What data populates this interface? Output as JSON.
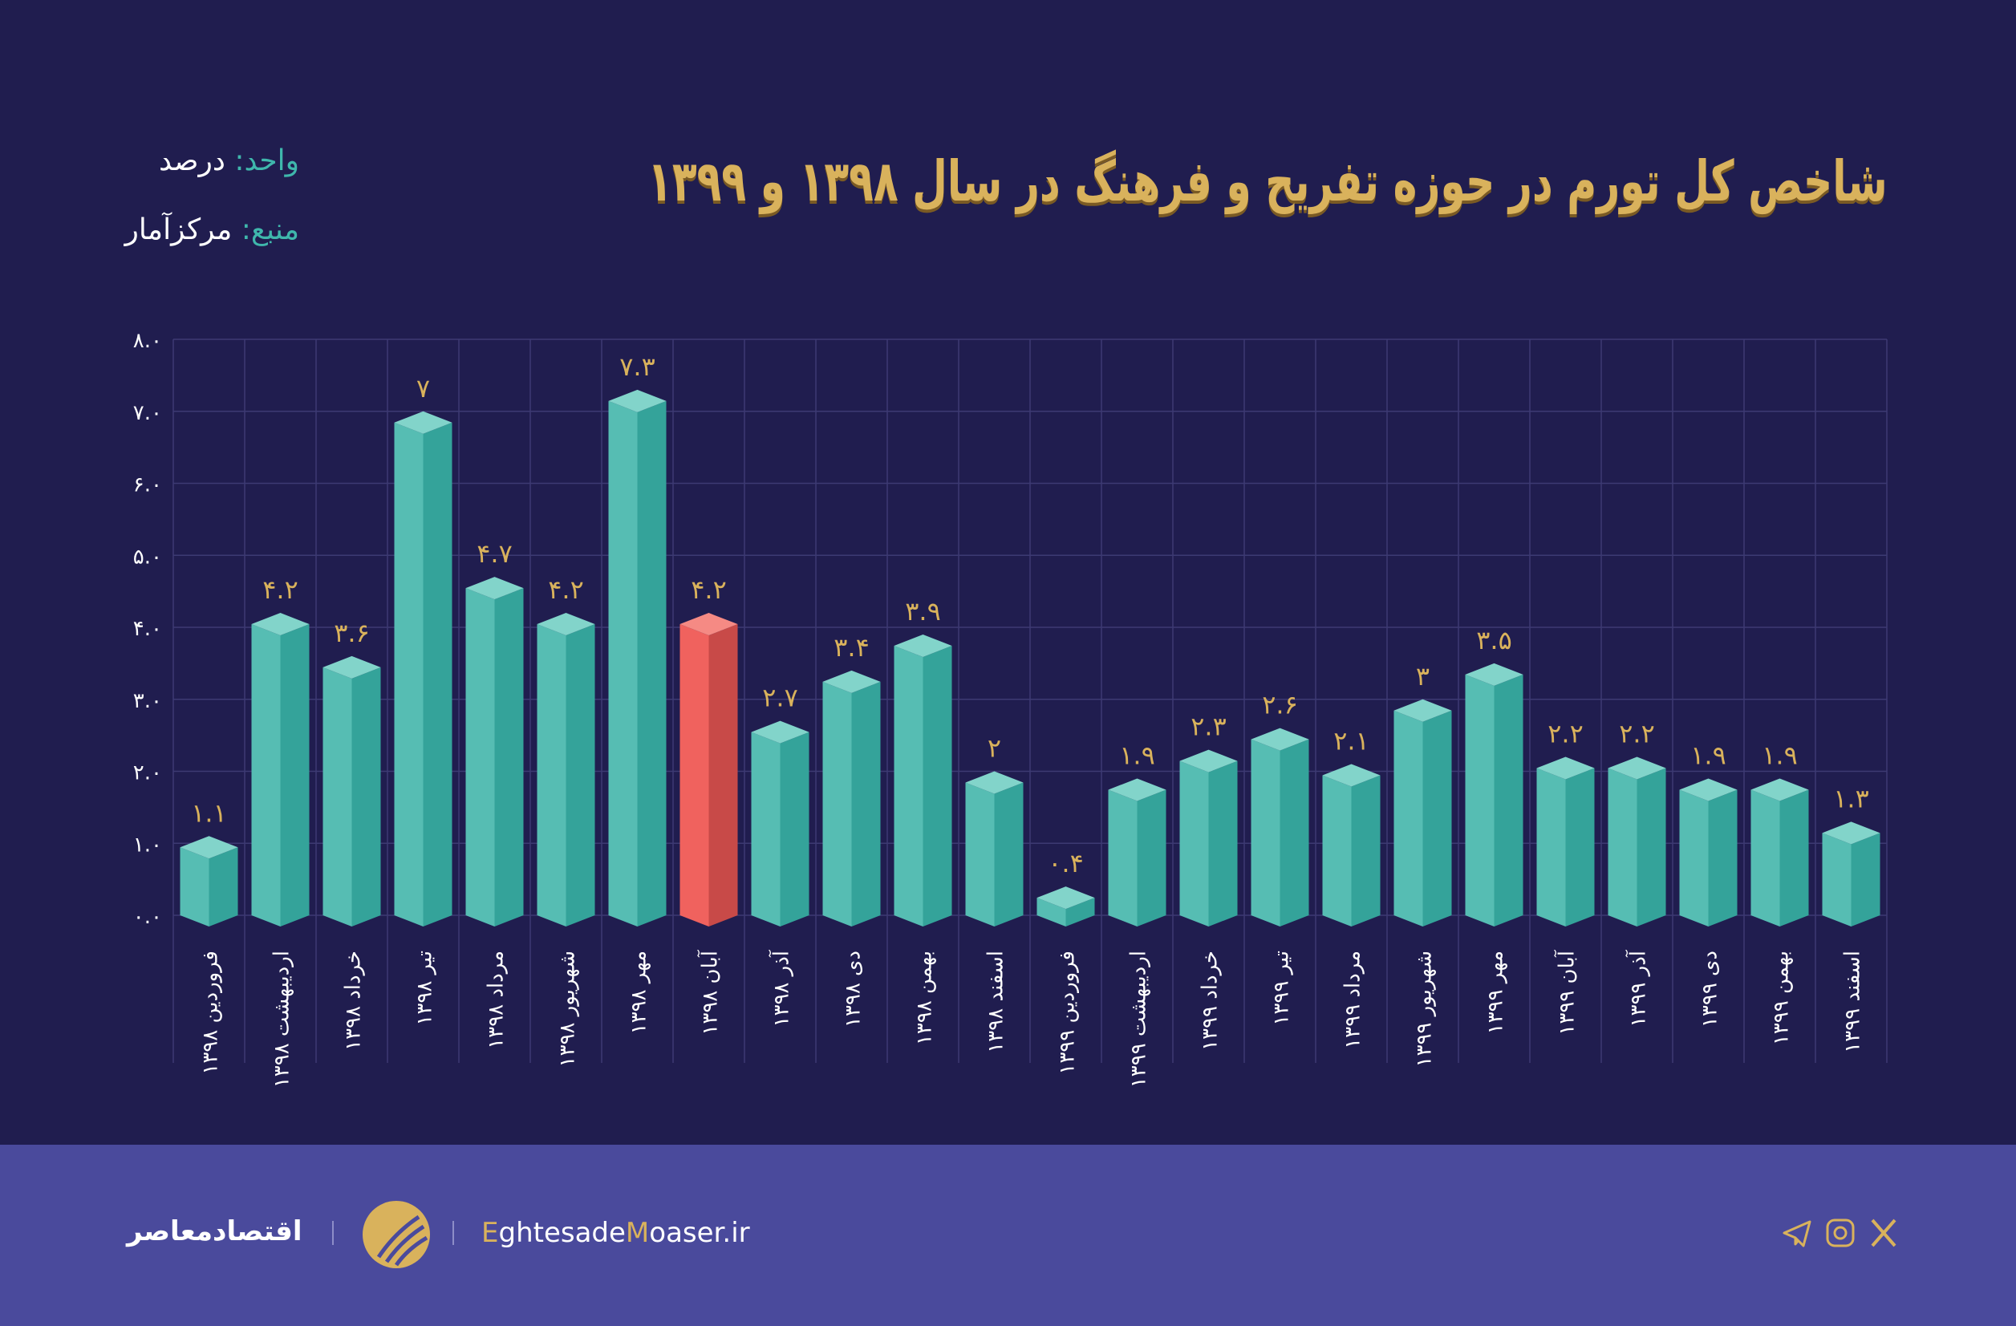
{
  "title": "شاخص کل تورم در حوزه تفریح و فرهنگ در سال ۱۳۹۸ و ۱۳۹۹",
  "unit": {
    "label": "واحد:",
    "value": "درصد"
  },
  "source": {
    "label": "منبع:",
    "value": "مرکزآمار"
  },
  "colors": {
    "background": "#201d4f",
    "bar": "#4dbab0",
    "highlight_bar": "#e85c58",
    "value_label": "#d9b25c",
    "footer": "#4a4a9c",
    "accent_teal": "#3fb7ac"
  },
  "chart_data": {
    "type": "bar",
    "title": "شاخص کل تورم در حوزه تفریح و فرهنگ در سال ۱۳۹۸ و ۱۳۹۹",
    "ylim": [
      0,
      8
    ],
    "grid": true,
    "y_ticks": [
      0,
      1,
      2,
      3,
      4,
      5,
      6,
      7,
      8
    ],
    "y_tick_labels": [
      "۰.۰",
      "۱.۰",
      "۲.۰",
      "۳.۰",
      "۴.۰",
      "۵.۰",
      "۶.۰",
      "۷.۰",
      "۸.۰"
    ],
    "categories": [
      "فروردین ۱۳۹۸",
      "اردیبهشت ۱۳۹۸",
      "خرداد ۱۳۹۸",
      "تیر ۱۳۹۸",
      "مرداد ۱۳۹۸",
      "شهریور ۱۳۹۸",
      "مهر ۱۳۹۸",
      "آبان ۱۳۹۸",
      "آذر ۱۳۹۸",
      "دی ۱۳۹۸",
      "بهمن ۱۳۹۸",
      "اسفند ۱۳۹۸",
      "فروردین ۱۳۹۹",
      "اردیبهشت ۱۳۹۹",
      "خرداد ۱۳۹۹",
      "تیر ۱۳۹۹",
      "مرداد ۱۳۹۹",
      "شهریور ۱۳۹۹",
      "مهر ۱۳۹۹",
      "آبان ۱۳۹۹",
      "آذر ۱۳۹۹",
      "دی ۱۳۹۹",
      "بهمن ۱۳۹۹",
      "اسفند ۱۳۹۹"
    ],
    "values": [
      1.1,
      4.2,
      3.6,
      7,
      4.7,
      4.2,
      7.3,
      4.2,
      2.7,
      3.4,
      3.9,
      2,
      0.4,
      1.9,
      2.3,
      2.6,
      2.1,
      3,
      3.5,
      2.2,
      2.2,
      1.9,
      1.9,
      1.3
    ],
    "value_labels": [
      "۱.۱",
      "۴.۲",
      "۳.۶",
      "۷",
      "۴.۷",
      "۴.۲",
      "۷.۳",
      "۴.۲",
      "۲.۷",
      "۳.۴",
      "۳.۹",
      "۲",
      "۰.۴",
      "۱.۹",
      "۲.۳",
      "۲.۶",
      "۲.۱",
      "۳",
      "۳.۵",
      "۲.۲",
      "۲.۲",
      "۱.۹",
      "۱.۹",
      "۱.۳"
    ],
    "highlighted_category": "آبان ۱۳۹۸"
  },
  "footer": {
    "brand_fa": "اقتصادمعاصر",
    "site_parts": [
      "E",
      "ghtesade",
      "M",
      "oaser.ir"
    ],
    "social_icons": [
      "telegram-icon",
      "instagram-icon",
      "x-icon"
    ]
  }
}
